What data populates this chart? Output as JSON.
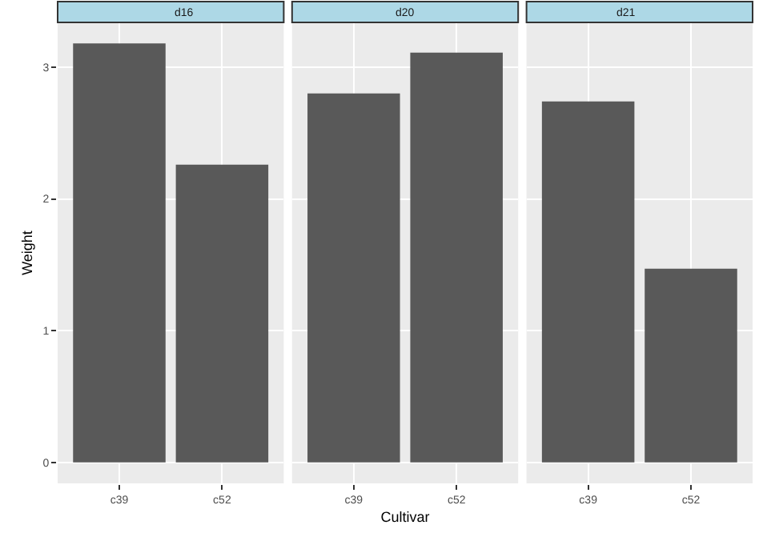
{
  "chart_data": [
    {
      "type": "bar",
      "title": "d16",
      "ylabel": "Weight",
      "categories": [
        "c39",
        "c52"
      ],
      "values": [
        3.18,
        2.26
      ],
      "color": "#595959",
      "ylim": [
        -0.16,
        3.34
      ],
      "yticks": [
        0,
        1,
        2,
        3
      ],
      "grid": true
    },
    {
      "type": "bar",
      "title": "d20",
      "xlabel": "Cultivar",
      "categories": [
        "c39",
        "c52"
      ],
      "values": [
        2.8,
        3.11
      ],
      "color": "#595959",
      "ylim": [
        -0.16,
        3.34
      ],
      "yticks": [
        0,
        1,
        2,
        3
      ],
      "grid": true,
      "tick_labels": "x"
    },
    {
      "type": "bar",
      "title": "d21",
      "categories": [
        "c39",
        "c52"
      ],
      "values": [
        2.74,
        1.47
      ],
      "color": "#595959",
      "ylim": [
        -0.16,
        3.34
      ],
      "yticks": [
        0,
        1,
        2,
        3
      ],
      "grid": true,
      "tick_labels": "x"
    }
  ]
}
